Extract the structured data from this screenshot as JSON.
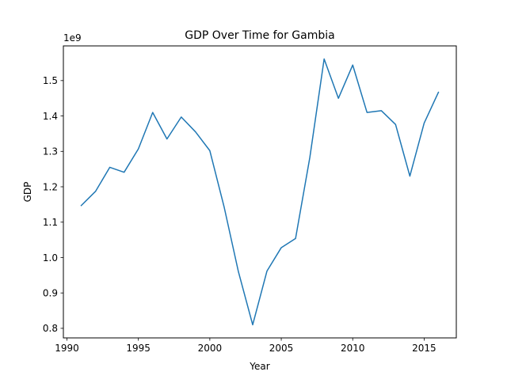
{
  "chart_data": {
    "type": "line",
    "title": "GDP Over Time for Gambia",
    "xlabel": "Year",
    "ylabel": "GDP",
    "y_offset_label": "1e9",
    "y_scale": 1000000000,
    "xlim": [
      1989.75,
      2017.25
    ],
    "ylim": [
      0.773,
      1.598
    ],
    "x_ticks": [
      1990,
      1995,
      2000,
      2005,
      2010,
      2015
    ],
    "y_ticks": [
      0.8,
      0.9,
      1.0,
      1.1,
      1.2,
      1.3,
      1.4,
      1.5
    ],
    "y_tick_labels": [
      "0.8",
      "0.9",
      "1.0",
      "1.1",
      "1.2",
      "1.3",
      "1.4",
      "1.5"
    ],
    "grid": false,
    "legend": "none",
    "series": [
      {
        "color": "#1f77b4",
        "x": [
          1991,
          1992,
          1993,
          1994,
          1995,
          1996,
          1997,
          1998,
          1999,
          2000,
          2001,
          2002,
          2003,
          2004,
          2005,
          2006,
          2007,
          2008,
          2009,
          2010,
          2011,
          2012,
          2013,
          2014,
          2015,
          2016
        ],
        "values": [
          1.147,
          1.187,
          1.255,
          1.241,
          1.307,
          1.41,
          1.335,
          1.397,
          1.355,
          1.302,
          1.143,
          0.96,
          0.81,
          0.962,
          1.028,
          1.054,
          1.283,
          1.561,
          1.45,
          1.544,
          1.41,
          1.415,
          1.376,
          1.23,
          1.38,
          1.467
        ]
      }
    ]
  }
}
